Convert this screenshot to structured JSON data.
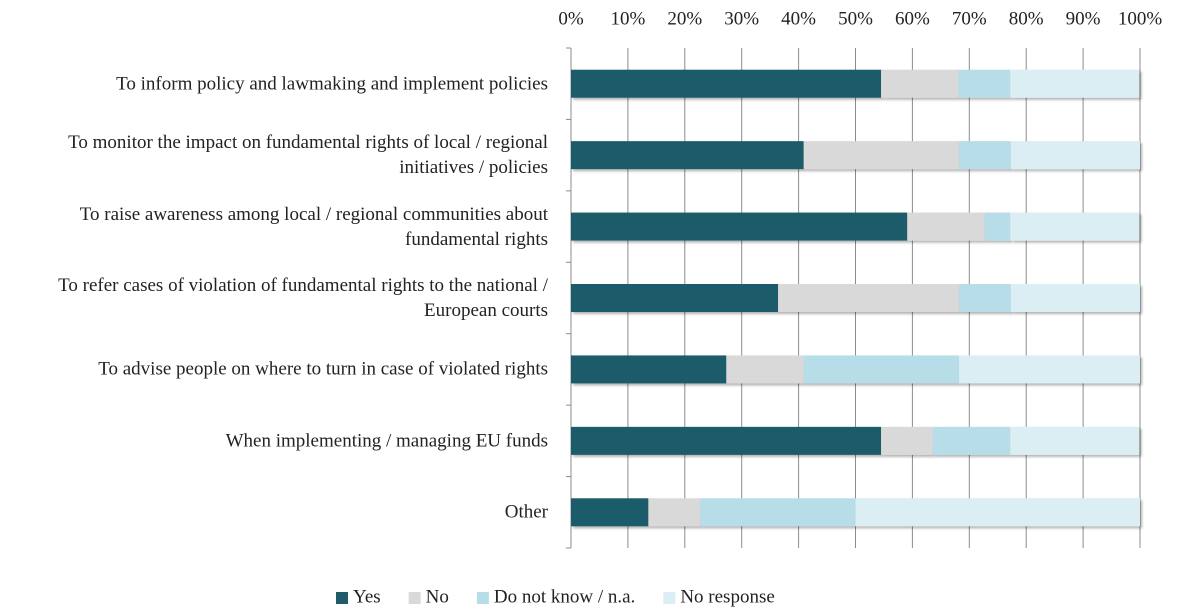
{
  "chart_data": {
    "type": "stacked_barh",
    "categories": [
      "To inform policy and lawmaking and implement policies",
      "To monitor the impact on fundamental rights of local / regional initiatives / policies",
      "To raise awareness among local / regional communities about fundamental rights",
      "To refer cases of violation of fundamental rights to the national / European courts",
      "To advise people on where to turn in case of violated rights",
      "When implementing / managing EU funds",
      "Other"
    ],
    "series": [
      {
        "name": "Yes",
        "color": "#1f5c6b",
        "values": [
          54.5,
          40.9,
          59.1,
          36.4,
          27.3,
          54.5,
          13.6
        ]
      },
      {
        "name": "No",
        "color": "#d9d9d9",
        "values": [
          13.6,
          27.3,
          13.6,
          31.8,
          13.6,
          9.1,
          9.1
        ]
      },
      {
        "name": "Do not know / n.a.",
        "color": "#b6dde8",
        "values": [
          9.1,
          9.1,
          4.5,
          9.1,
          27.3,
          13.6,
          27.3
        ]
      },
      {
        "name": "No response",
        "color": "#daeef3",
        "values": [
          22.7,
          22.7,
          22.7,
          22.7,
          31.8,
          22.7,
          50.0
        ]
      }
    ],
    "xlim": [
      0,
      100
    ],
    "xticks": [
      {
        "value": 0,
        "label": "0%"
      },
      {
        "value": 10,
        "label": "10%"
      },
      {
        "value": 20,
        "label": "20%"
      },
      {
        "value": 30,
        "label": "30%"
      },
      {
        "value": 40,
        "label": "40%"
      },
      {
        "value": 50,
        "label": "50%"
      },
      {
        "value": 60,
        "label": "60%"
      },
      {
        "value": 70,
        "label": "70%"
      },
      {
        "value": 80,
        "label": "80%"
      },
      {
        "value": 90,
        "label": "90%"
      },
      {
        "value": 100,
        "label": "100%"
      }
    ],
    "grid": true,
    "legend": "bottom"
  }
}
